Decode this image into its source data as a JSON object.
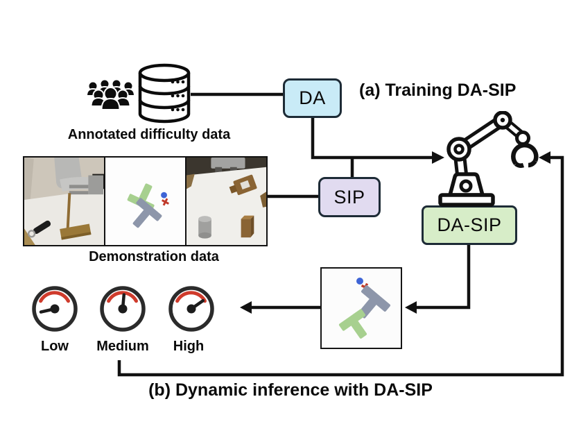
{
  "figure": {
    "heading_a": "(a) Training DA-SIP",
    "heading_b": "(b) Dynamic inference with DA-SIP"
  },
  "annotated_group": {
    "caption": "Annotated difficulty data",
    "icons": [
      "crowd-icon",
      "database-icon"
    ]
  },
  "demonstration_group": {
    "caption": "Demonstration data",
    "images": [
      "sim-robot-arm-scene",
      "push-t-scene",
      "tabletop-assembly-scene"
    ]
  },
  "nodes": {
    "da": {
      "label": "DA",
      "fill": "#c9ebf7",
      "border": "#1d2b36"
    },
    "sip": {
      "label": "SIP",
      "fill": "#e1dbf0",
      "border": "#1d2b36"
    },
    "da_sip": {
      "label": "DA-SIP",
      "fill": "#d7edc8",
      "border": "#22313a"
    }
  },
  "robot": {
    "icon": "robot-arm-icon",
    "color": "#111111"
  },
  "gauges": {
    "ring_color": "#2b2b2b",
    "arc_color": "#cf3b2c",
    "items": [
      {
        "label": "Low",
        "needle_deg": 193
      },
      {
        "label": "Medium",
        "needle_deg": 85
      },
      {
        "label": "High",
        "needle_deg": 35
      }
    ]
  },
  "inference_preview": {
    "image": "push-t-state-image",
    "colors": {
      "green_t": "#a7d08f",
      "gray_t": "#8d96aa",
      "goal_dot": "#3e64d6",
      "goal_cross": "#bf3a28"
    }
  },
  "connectors": {
    "color": "#111111"
  }
}
